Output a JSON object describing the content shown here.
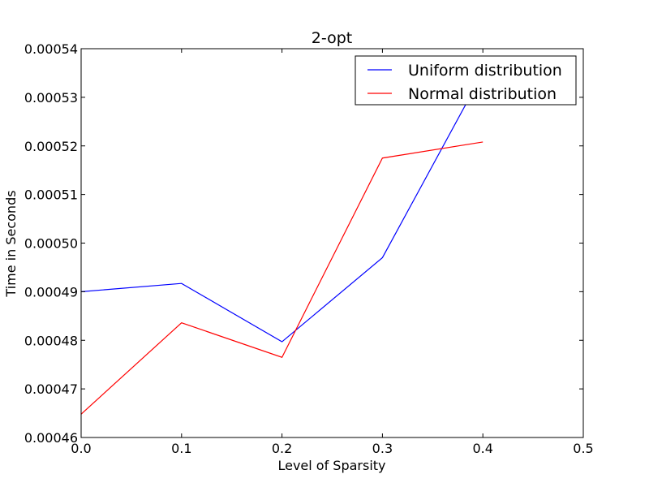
{
  "chart_data": {
    "type": "line",
    "title": "2-opt",
    "xlabel": "Level of Sparsity",
    "ylabel": "Time in Seconds",
    "xlim": [
      0.0,
      0.5
    ],
    "ylim": [
      0.00046,
      0.00054
    ],
    "xticks": [
      "0.0",
      "0.1",
      "0.2",
      "0.3",
      "0.4",
      "0.5"
    ],
    "yticks": [
      "0.00046",
      "0.00047",
      "0.00048",
      "0.00049",
      "0.00050",
      "0.00051",
      "0.00052",
      "0.00053",
      "0.00054"
    ],
    "x": [
      0.0,
      0.1,
      0.2,
      0.3,
      0.4
    ],
    "grid": false,
    "legend_position": "top-right",
    "series": [
      {
        "name": "Uniform distribution",
        "color": "#0000ff",
        "values": [
          0.00049,
          0.0004917,
          0.0004797,
          0.000497,
          0.000535
        ]
      },
      {
        "name": "Normal distribution",
        "color": "#ff0000",
        "values": [
          0.0004648,
          0.0004836,
          0.0004765,
          0.0005175,
          0.0005208
        ]
      }
    ]
  }
}
